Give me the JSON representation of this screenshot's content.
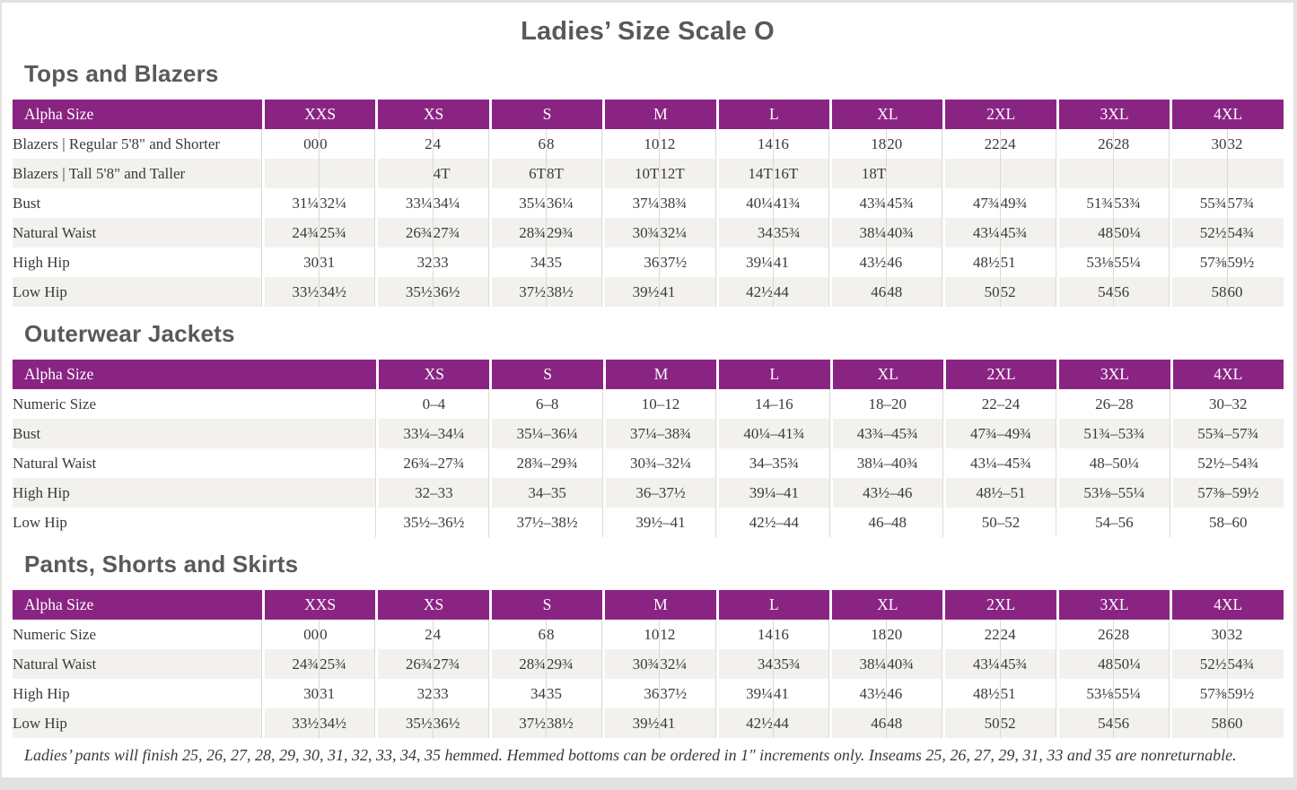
{
  "page": {
    "title": "Ladies’ Size Scale O",
    "footnote": "Ladies’ pants will finish 25, 26, 27, 28, 29, 30, 31, 32, 33, 34, 35 hemmed. Hemmed bottoms can be ordered in 1″ increments only. Inseams 25, 26, 27, 29, 31, 33 and 35 are nonreturnable."
  },
  "colors": {
    "header_purple": "#8a2483",
    "row_stripe": "#f2f1ee",
    "body_text": "#3a3a3a",
    "heading_text": "#595959",
    "divider_line": "#dcd9d6",
    "page_background": "#ffffff",
    "surround_gray": "#e3e2e1"
  },
  "tables": [
    {
      "section_title": "Tops and Blazers",
      "layout": "paired",
      "header_label": "Alpha Size",
      "label_col_width": 277,
      "value_col_width": 63,
      "sizes": [
        "XXS",
        "XS",
        "S",
        "M",
        "L",
        "XL",
        "2XL",
        "3XL",
        "4XL"
      ],
      "rows": [
        {
          "label": "Blazers  |  Regular 5'8\" and Shorter",
          "values": [
            [
              "00",
              "0"
            ],
            [
              "2",
              "4"
            ],
            [
              "6",
              "8"
            ],
            [
              "10",
              "12"
            ],
            [
              "14",
              "16"
            ],
            [
              "18",
              "20"
            ],
            [
              "22",
              "24"
            ],
            [
              "26",
              "28"
            ],
            [
              "30",
              "32"
            ]
          ]
        },
        {
          "label": "Blazers  |  Tall 5'8\" and Taller",
          "values": [
            [
              "",
              ""
            ],
            [
              "",
              "4T"
            ],
            [
              "6T",
              "8T"
            ],
            [
              "10T",
              "12T"
            ],
            [
              "14T",
              "16T"
            ],
            [
              "18T",
              ""
            ],
            [
              "",
              ""
            ],
            [
              "",
              ""
            ],
            [
              "",
              ""
            ]
          ]
        },
        {
          "label": "Bust",
          "values": [
            [
              "31¼",
              "32¼"
            ],
            [
              "33¼",
              "34¼"
            ],
            [
              "35¼",
              "36¼"
            ],
            [
              "37¼",
              "38¾"
            ],
            [
              "40¼",
              "41¾"
            ],
            [
              "43¾",
              "45¾"
            ],
            [
              "47¾",
              "49¾"
            ],
            [
              "51¾",
              "53¾"
            ],
            [
              "55¾",
              "57¾"
            ]
          ]
        },
        {
          "label": "Natural Waist",
          "values": [
            [
              "24¾",
              "25¾"
            ],
            [
              "26¾",
              "27¾"
            ],
            [
              "28¾",
              "29¾"
            ],
            [
              "30¾",
              "32¼"
            ],
            [
              "34",
              "35¾"
            ],
            [
              "38¼",
              "40¾"
            ],
            [
              "43¼",
              "45¾"
            ],
            [
              "48",
              "50¼"
            ],
            [
              "52½",
              "54¾"
            ]
          ]
        },
        {
          "label": "High Hip",
          "values": [
            [
              "30",
              "31"
            ],
            [
              "32",
              "33"
            ],
            [
              "34",
              "35"
            ],
            [
              "36",
              "37½"
            ],
            [
              "39¼",
              "41"
            ],
            [
              "43½",
              "46"
            ],
            [
              "48½",
              "51"
            ],
            [
              "53⅛",
              "55¼"
            ],
            [
              "57⅜",
              "59½"
            ]
          ]
        },
        {
          "label": "Low Hip",
          "values": [
            [
              "33½",
              "34½"
            ],
            [
              "35½",
              "36½"
            ],
            [
              "37½",
              "38½"
            ],
            [
              "39½",
              "41"
            ],
            [
              "42½",
              "44"
            ],
            [
              "46",
              "48"
            ],
            [
              "50",
              "52"
            ],
            [
              "54",
              "56"
            ],
            [
              "58",
              "60"
            ]
          ]
        }
      ]
    },
    {
      "section_title": "Outerwear Jackets",
      "layout": "single",
      "header_label": "Alpha Size",
      "label_col_width": 404,
      "value_col_width": 126,
      "sizes": [
        "XS",
        "S",
        "M",
        "L",
        "XL",
        "2XL",
        "3XL",
        "4XL"
      ],
      "rows": [
        {
          "label": "Numeric Size",
          "values": [
            "0–4",
            "6–8",
            "10–12",
            "14–16",
            "18–20",
            "22–24",
            "26–28",
            "30–32"
          ]
        },
        {
          "label": "Bust",
          "values": [
            "33¼–34¼",
            "35¼–36¼",
            "37¼–38¾",
            "40¼–41¾",
            "43¾–45¾",
            "47¾–49¾",
            "51¾–53¾",
            "55¾–57¾"
          ]
        },
        {
          "label": "Natural Waist",
          "values": [
            "26¾–27¾",
            "28¾–29¾",
            "30¾–32¼",
            "34–35¾",
            "38¼–40¾",
            "43¼–45¾",
            "48–50¼",
            "52½–54¾"
          ]
        },
        {
          "label": "High Hip",
          "values": [
            "32–33",
            "34–35",
            "36–37½",
            "39¼–41",
            "43½–46",
            "48½–51",
            "53⅛–55¼",
            "57⅜–59½"
          ]
        },
        {
          "label": "Low Hip",
          "values": [
            "35½–36½",
            "37½–38½",
            "39½–41",
            "42½–44",
            "46–48",
            "50–52",
            "54–56",
            "58–60"
          ]
        }
      ]
    },
    {
      "section_title": "Pants, Shorts and Skirts",
      "layout": "paired",
      "header_label": "Alpha Size",
      "label_col_width": 277,
      "value_col_width": 63,
      "sizes": [
        "XXS",
        "XS",
        "S",
        "M",
        "L",
        "XL",
        "2XL",
        "3XL",
        "4XL"
      ],
      "rows": [
        {
          "label": "Numeric Size",
          "values": [
            [
              "00",
              "0"
            ],
            [
              "2",
              "4"
            ],
            [
              "6",
              "8"
            ],
            [
              "10",
              "12"
            ],
            [
              "14",
              "16"
            ],
            [
              "18",
              "20"
            ],
            [
              "22",
              "24"
            ],
            [
              "26",
              "28"
            ],
            [
              "30",
              "32"
            ]
          ]
        },
        {
          "label": "Natural Waist",
          "values": [
            [
              "24¾",
              "25¾"
            ],
            [
              "26¾",
              "27¾"
            ],
            [
              "28¾",
              "29¾"
            ],
            [
              "30¾",
              "32¼"
            ],
            [
              "34",
              "35¾"
            ],
            [
              "38¼",
              "40¾"
            ],
            [
              "43¼",
              "45¾"
            ],
            [
              "48",
              "50¼"
            ],
            [
              "52½",
              "54¾"
            ]
          ]
        },
        {
          "label": "High Hip",
          "values": [
            [
              "30",
              "31"
            ],
            [
              "32",
              "33"
            ],
            [
              "34",
              "35"
            ],
            [
              "36",
              "37½"
            ],
            [
              "39¼",
              "41"
            ],
            [
              "43½",
              "46"
            ],
            [
              "48½",
              "51"
            ],
            [
              "53⅛",
              "55¼"
            ],
            [
              "57⅜",
              "59½"
            ]
          ]
        },
        {
          "label": "Low Hip",
          "values": [
            [
              "33½",
              "34½"
            ],
            [
              "35½",
              "36½"
            ],
            [
              "37½",
              "38½"
            ],
            [
              "39½",
              "41"
            ],
            [
              "42½",
              "44"
            ],
            [
              "46",
              "48"
            ],
            [
              "50",
              "52"
            ],
            [
              "54",
              "56"
            ],
            [
              "58",
              "60"
            ]
          ]
        }
      ]
    }
  ]
}
